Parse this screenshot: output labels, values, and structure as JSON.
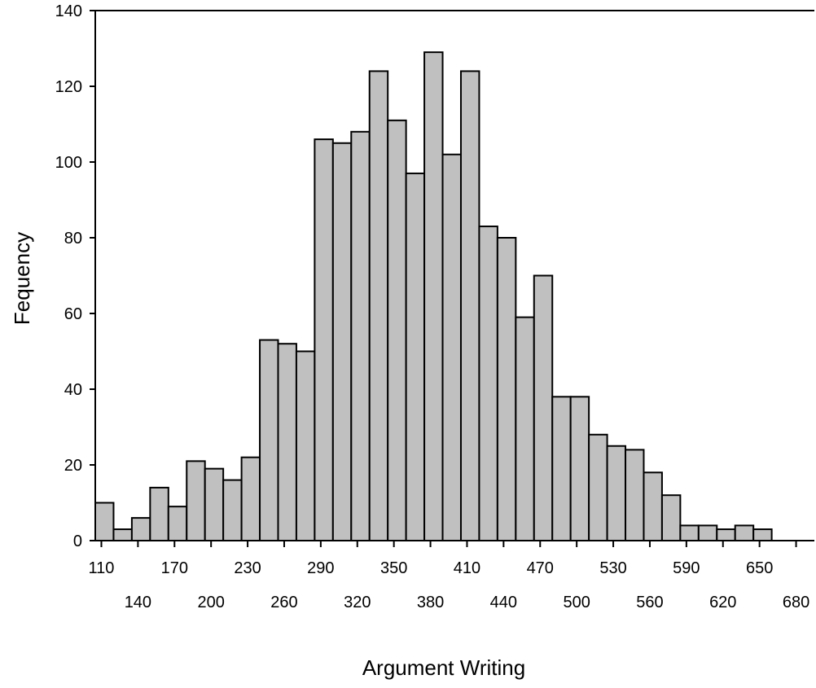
{
  "chart_data": {
    "type": "bar",
    "title": "",
    "xlabel": "Argument Writing",
    "ylabel": "Fequency",
    "ylim": [
      0,
      140
    ],
    "yticks": [
      0,
      20,
      40,
      60,
      80,
      100,
      120,
      140
    ],
    "xlim": [
      105,
      695
    ],
    "bin_width": 15,
    "xticks_row1": [
      110,
      170,
      230,
      290,
      350,
      410,
      470,
      530,
      590,
      650
    ],
    "xticks_row2": [
      140,
      200,
      260,
      320,
      380,
      440,
      500,
      560,
      620,
      680
    ],
    "bins": [
      {
        "x": 105,
        "value": 10
      },
      {
        "x": 120,
        "value": 3
      },
      {
        "x": 135,
        "value": 6
      },
      {
        "x": 150,
        "value": 14
      },
      {
        "x": 165,
        "value": 9
      },
      {
        "x": 180,
        "value": 21
      },
      {
        "x": 195,
        "value": 19
      },
      {
        "x": 210,
        "value": 16
      },
      {
        "x": 225,
        "value": 22
      },
      {
        "x": 240,
        "value": 53
      },
      {
        "x": 255,
        "value": 52
      },
      {
        "x": 270,
        "value": 50
      },
      {
        "x": 285,
        "value": 106
      },
      {
        "x": 300,
        "value": 105
      },
      {
        "x": 315,
        "value": 108
      },
      {
        "x": 330,
        "value": 124
      },
      {
        "x": 345,
        "value": 111
      },
      {
        "x": 360,
        "value": 97
      },
      {
        "x": 375,
        "value": 129
      },
      {
        "x": 390,
        "value": 102
      },
      {
        "x": 405,
        "value": 124
      },
      {
        "x": 420,
        "value": 83
      },
      {
        "x": 435,
        "value": 80
      },
      {
        "x": 450,
        "value": 59
      },
      {
        "x": 465,
        "value": 70
      },
      {
        "x": 480,
        "value": 38
      },
      {
        "x": 495,
        "value": 38
      },
      {
        "x": 510,
        "value": 28
      },
      {
        "x": 525,
        "value": 25
      },
      {
        "x": 540,
        "value": 24
      },
      {
        "x": 555,
        "value": 18
      },
      {
        "x": 570,
        "value": 12
      },
      {
        "x": 585,
        "value": 4
      },
      {
        "x": 600,
        "value": 4
      },
      {
        "x": 615,
        "value": 3
      },
      {
        "x": 630,
        "value": 4
      },
      {
        "x": 645,
        "value": 3
      }
    ],
    "grid": false,
    "legend": "none",
    "bar_color": "#c0c0c0",
    "edge_color": "#000000"
  }
}
